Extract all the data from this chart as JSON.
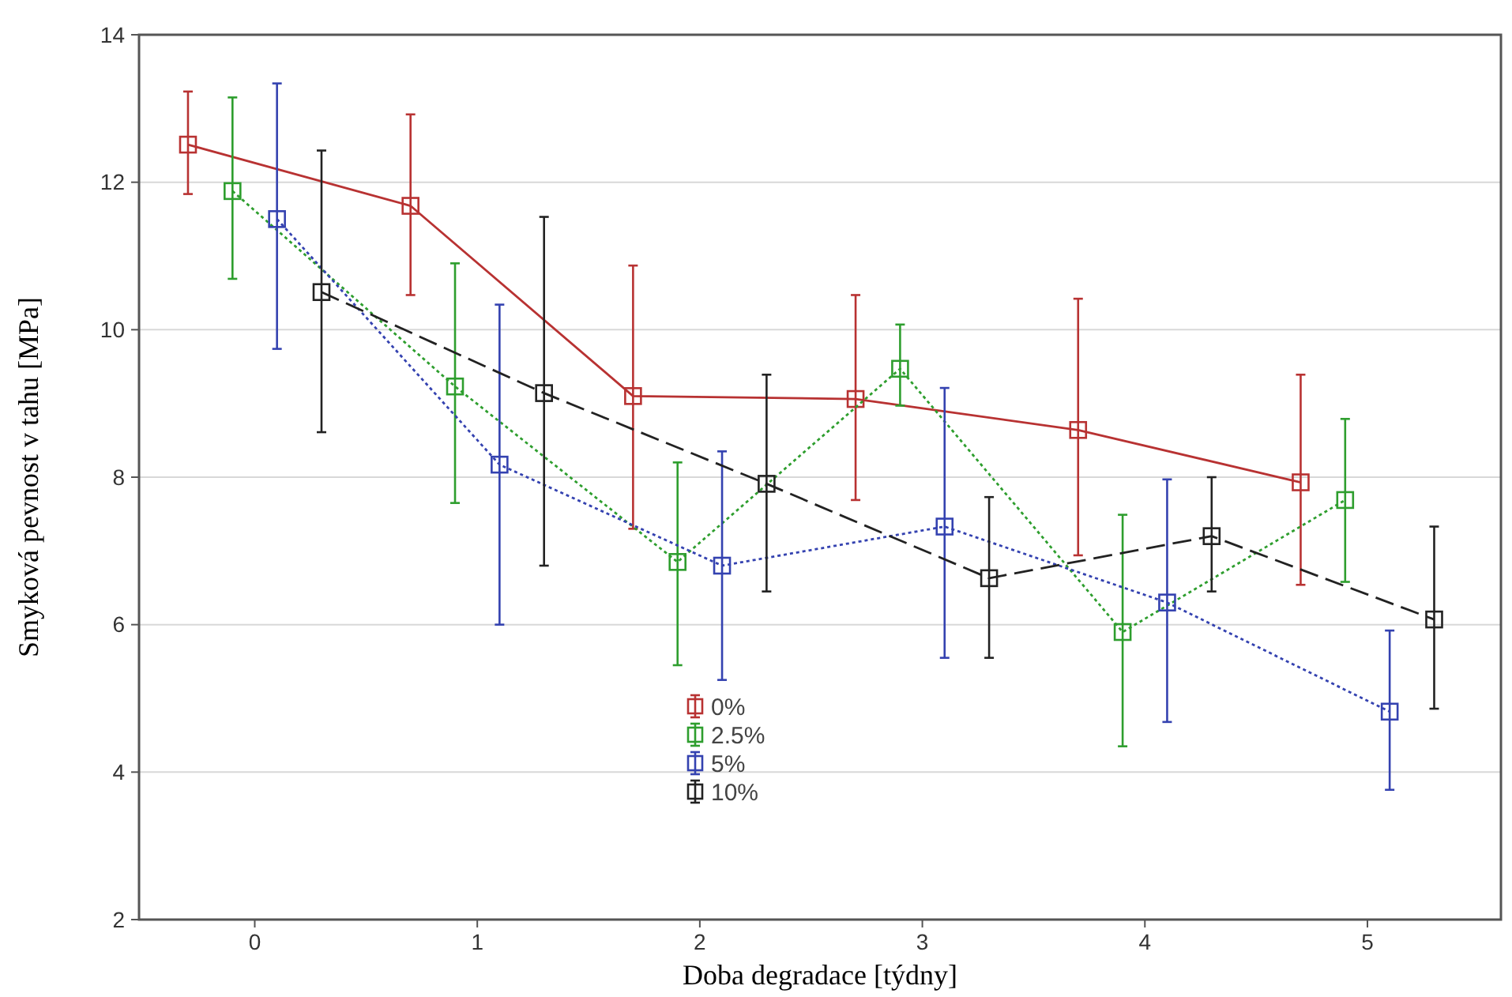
{
  "chart_data": {
    "type": "line",
    "xlabel": "Doba degradace [týdny]",
    "ylabel": "Smyková pevnost v tahu [MPa]",
    "xlim": [
      -0.52,
      5.6
    ],
    "xticks": [
      0,
      1,
      2,
      3,
      4,
      5
    ],
    "ylim": [
      2,
      14
    ],
    "yticks": [
      2,
      4,
      6,
      8,
      10,
      12,
      14
    ],
    "grid": "y",
    "legend": "bottom",
    "marker": "square",
    "series": [
      {
        "name": "0%",
        "color": "#b83232",
        "line_style": "solid",
        "x": [
          -0.3,
          0.7,
          1.7,
          2.7,
          3.7,
          4.7
        ],
        "values": [
          12.51,
          11.68,
          9.1,
          9.06,
          8.64,
          7.93
        ],
        "errors": [
          [
            11.84,
            13.23
          ],
          [
            10.47,
            12.92
          ],
          [
            7.3,
            10.87
          ],
          [
            7.69,
            10.47
          ],
          [
            6.94,
            10.42
          ],
          [
            6.54,
            9.39
          ]
        ]
      },
      {
        "name": "2.5%",
        "color": "#2e9e2e",
        "line_style": "dotted",
        "x": [
          -0.1,
          0.9,
          1.9,
          2.9,
          3.9,
          4.9
        ],
        "values": [
          11.88,
          9.23,
          6.85,
          9.47,
          5.9,
          7.69
        ],
        "errors": [
          [
            10.69,
            13.15
          ],
          [
            7.65,
            10.9
          ],
          [
            5.45,
            8.2
          ],
          [
            8.97,
            10.07
          ],
          [
            4.35,
            7.49
          ],
          [
            6.58,
            8.79
          ]
        ]
      },
      {
        "name": "5%",
        "color": "#3442b0",
        "line_style": "dotted",
        "x": [
          0.1,
          1.1,
          2.1,
          3.1,
          4.1,
          5.1
        ],
        "values": [
          11.5,
          8.17,
          6.8,
          7.33,
          6.3,
          4.82
        ],
        "errors": [
          [
            9.74,
            13.34
          ],
          [
            6.0,
            10.34
          ],
          [
            5.25,
            8.35
          ],
          [
            5.55,
            9.21
          ],
          [
            4.68,
            7.97
          ],
          [
            3.76,
            5.92
          ]
        ]
      },
      {
        "name": "10%",
        "color": "#222222",
        "line_style": "dashed",
        "x": [
          0.3,
          1.3,
          2.3,
          3.3,
          4.3,
          5.3
        ],
        "values": [
          10.51,
          9.14,
          7.91,
          6.63,
          7.2,
          6.07
        ],
        "errors": [
          [
            8.61,
            12.43
          ],
          [
            6.8,
            11.53
          ],
          [
            6.45,
            9.39
          ],
          [
            5.55,
            7.73
          ],
          [
            6.45,
            8.0
          ],
          [
            4.86,
            7.33
          ]
        ]
      }
    ]
  }
}
